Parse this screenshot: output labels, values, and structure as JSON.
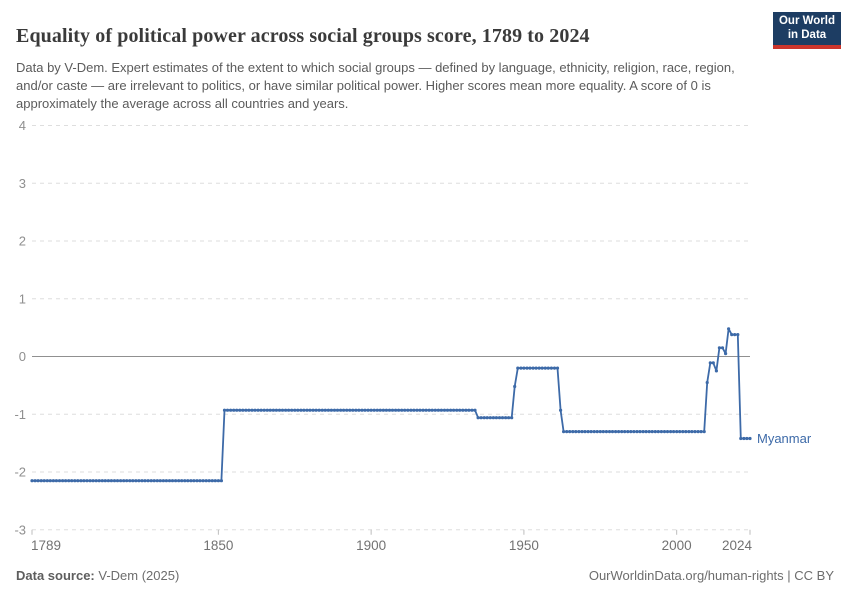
{
  "header": {
    "title": "Equality of political power across social groups score, 1789 to 2024",
    "subtitle": "Data by V-Dem. Expert estimates of the extent to which social groups — defined by language, ethnicity, religion, race, region, and/or caste — are irrelevant to politics, or have similar political power. Higher scores mean more equality. A score of 0 is approximately the average across all countries and years.",
    "logo": {
      "line1": "Our World",
      "line2": "in Data",
      "bg_color": "#1d3d63",
      "accent_color": "#cc352c"
    }
  },
  "chart_data": {
    "type": "line",
    "title": "Equality of political power across social groups score, 1789 to 2024",
    "xlabel": "",
    "ylabel": "",
    "x": {
      "min": 1789,
      "max": 2024,
      "ticks": [
        1789,
        1850,
        1900,
        1950,
        2000,
        2024
      ]
    },
    "y": {
      "min": -3,
      "max": 4,
      "ticks": [
        4,
        3,
        2,
        1,
        0,
        -1,
        -2,
        -3
      ]
    },
    "grid": true,
    "legend_position": "end-of-line",
    "series": [
      {
        "name": "Myanmar",
        "color": "#3d6aa8",
        "steps": [
          {
            "from": 1789,
            "to": 1851,
            "value": -2.15
          },
          {
            "from": 1852,
            "to": 1934,
            "value": -0.93
          },
          {
            "from": 1935,
            "to": 1946,
            "value": -1.06
          },
          {
            "from": 1947,
            "to": 1947,
            "value": -0.52
          },
          {
            "from": 1948,
            "to": 1961,
            "value": -0.2
          },
          {
            "from": 1962,
            "to": 1962,
            "value": -0.93
          },
          {
            "from": 1963,
            "to": 2009,
            "value": -1.3
          },
          {
            "from": 2010,
            "to": 2010,
            "value": -0.45
          },
          {
            "from": 2011,
            "to": 2012,
            "value": -0.11
          },
          {
            "from": 2013,
            "to": 2013,
            "value": -0.25
          },
          {
            "from": 2014,
            "to": 2015,
            "value": 0.15
          },
          {
            "from": 2016,
            "to": 2016,
            "value": 0.05
          },
          {
            "from": 2017,
            "to": 2017,
            "value": 0.48
          },
          {
            "from": 2018,
            "to": 2020,
            "value": 0.38
          },
          {
            "from": 2021,
            "to": 2024,
            "value": -1.42
          }
        ]
      }
    ],
    "colors": {
      "grid": "#dedede",
      "zero_line": "#909090",
      "y_tick_text": "#8f8f8f",
      "x_tick_text": "#727272",
      "tick_mark": "#bdbdbd"
    }
  },
  "footer": {
    "source_label": "Data source:",
    "source_value": " V-Dem (2025)",
    "right_text": "OurWorldinData.org/human-rights | CC BY"
  }
}
